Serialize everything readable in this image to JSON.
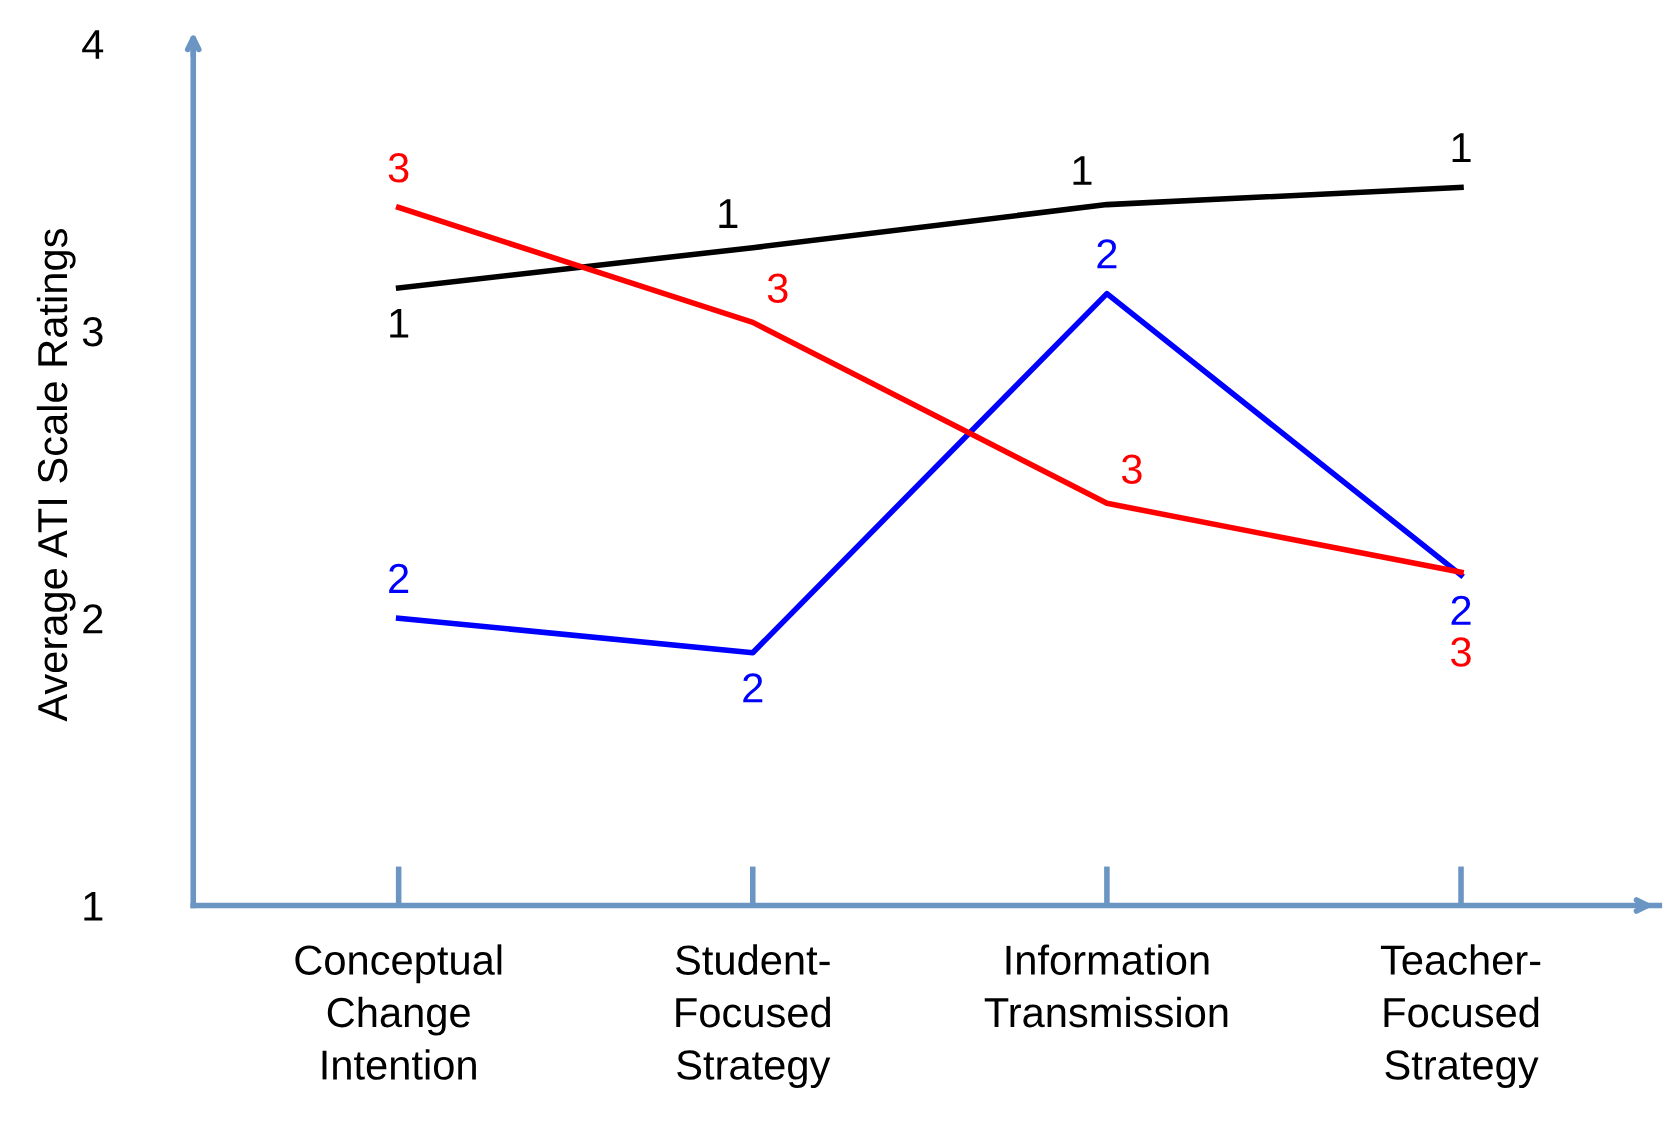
{
  "chart_data": {
    "type": "line",
    "ylabel": "Average ATI Scale Ratings",
    "categories": [
      "Conceptual\nChange\nIntention",
      "Student-\nFocused\nStrategy",
      "Information\nTransmission",
      "Teacher-\nFocused\nStrategy"
    ],
    "ylim": [
      1,
      4
    ],
    "yticks": [
      1,
      2,
      3,
      4
    ],
    "grid": false,
    "legend": false,
    "series": [
      {
        "name": "1",
        "color": "#000000",
        "values": [
          3.15,
          3.29,
          3.44,
          3.5
        ]
      },
      {
        "name": "2",
        "color": "#0000ff",
        "values": [
          2.0,
          1.88,
          3.13,
          2.15
        ]
      },
      {
        "name": "3",
        "color": "#ff0000",
        "values": [
          3.43,
          3.03,
          2.4,
          2.16
        ]
      }
    ]
  }
}
